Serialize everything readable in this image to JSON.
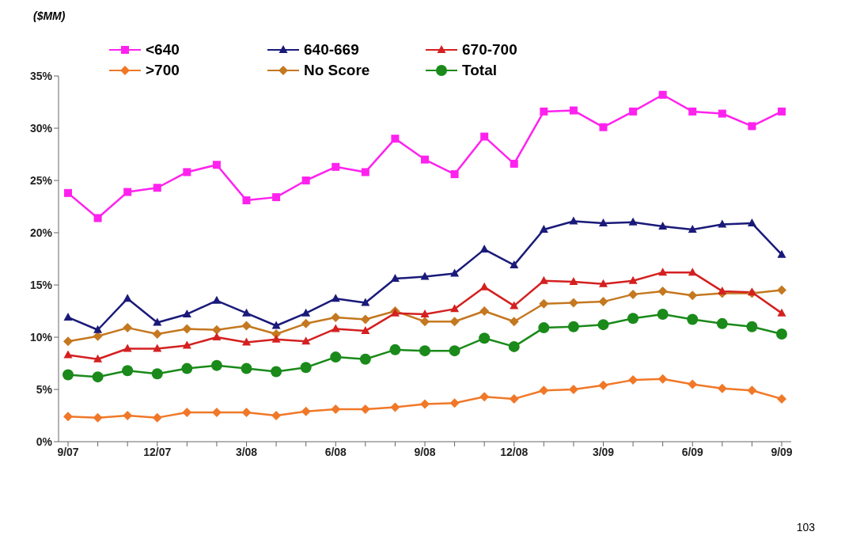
{
  "chart_data": {
    "type": "line",
    "ylabel": "($MM)",
    "categories": [
      "9/07",
      null,
      null,
      "12/07",
      null,
      null,
      "3/08",
      null,
      null,
      "6/08",
      null,
      null,
      "9/08",
      null,
      null,
      "12/08",
      null,
      null,
      "3/09",
      null,
      null,
      "6/09",
      null,
      null,
      "9/09"
    ],
    "series": [
      {
        "name": "<640",
        "color": "#ff22ee",
        "marker": "square",
        "values": [
          23.8,
          21.4,
          23.9,
          24.3,
          25.8,
          26.5,
          23.1,
          23.4,
          25.0,
          26.3,
          25.8,
          29.0,
          27.0,
          25.6,
          29.2,
          26.6,
          31.6,
          31.7,
          30.1,
          31.6,
          33.2,
          31.6,
          31.4,
          30.2,
          31.6
        ]
      },
      {
        "name": "640-669",
        "color": "#1a1a7a",
        "marker": "triangle",
        "values": [
          11.9,
          10.7,
          13.7,
          11.4,
          12.2,
          13.5,
          12.3,
          11.1,
          12.3,
          13.7,
          13.3,
          15.6,
          15.8,
          16.1,
          18.4,
          16.9,
          20.3,
          21.1,
          20.9,
          21.0,
          20.6,
          20.3,
          20.8,
          20.9,
          17.9
        ]
      },
      {
        "name": "670-700",
        "color": "#d42020",
        "marker": "triangle",
        "values": [
          8.3,
          7.9,
          8.9,
          8.9,
          9.2,
          10.0,
          9.5,
          9.8,
          9.6,
          10.8,
          10.6,
          12.3,
          12.2,
          12.7,
          14.8,
          13.0,
          15.4,
          15.3,
          15.1,
          15.4,
          16.2,
          16.2,
          14.4,
          14.3,
          12.3
        ]
      },
      {
        "name": ">700",
        "color": "#f07828",
        "marker": "diamond",
        "values": [
          2.4,
          2.3,
          2.5,
          2.3,
          2.8,
          2.8,
          2.8,
          2.5,
          2.9,
          3.1,
          3.1,
          3.3,
          3.6,
          3.7,
          4.3,
          4.1,
          4.9,
          5.0,
          5.4,
          5.9,
          6.0,
          5.5,
          5.1,
          4.9,
          4.1
        ]
      },
      {
        "name": "No Score",
        "color": "#c47820",
        "marker": "diamond",
        "values": [
          9.6,
          10.1,
          10.9,
          10.3,
          10.8,
          10.7,
          11.1,
          10.3,
          11.3,
          11.9,
          11.7,
          12.5,
          11.5,
          11.5,
          12.5,
          11.5,
          13.2,
          13.3,
          13.4,
          14.1,
          14.4,
          14.0,
          14.2,
          14.2,
          14.5
        ]
      },
      {
        "name": "Total",
        "color": "#1a8a1a",
        "marker": "circle",
        "values": [
          6.4,
          6.2,
          6.8,
          6.5,
          7.0,
          7.3,
          7.0,
          6.7,
          7.1,
          8.1,
          7.9,
          8.8,
          8.7,
          8.7,
          9.9,
          9.1,
          10.9,
          11.0,
          11.2,
          11.8,
          12.2,
          11.7,
          11.3,
          11.0,
          10.3
        ]
      }
    ],
    "ylim": [
      0,
      35
    ],
    "yticks": [
      {
        "value": 0,
        "label": "0%"
      },
      {
        "value": 5,
        "label": "5%"
      },
      {
        "value": 10,
        "label": "10%"
      },
      {
        "value": 15,
        "label": "15%"
      },
      {
        "value": 20,
        "label": "20%"
      },
      {
        "value": 25,
        "label": "25%"
      },
      {
        "value": 30,
        "label": "30%"
      },
      {
        "value": 35,
        "label": "35%"
      }
    ],
    "grid": false,
    "legend": "top",
    "line_style": "solid",
    "annotations": [
      "103"
    ]
  }
}
